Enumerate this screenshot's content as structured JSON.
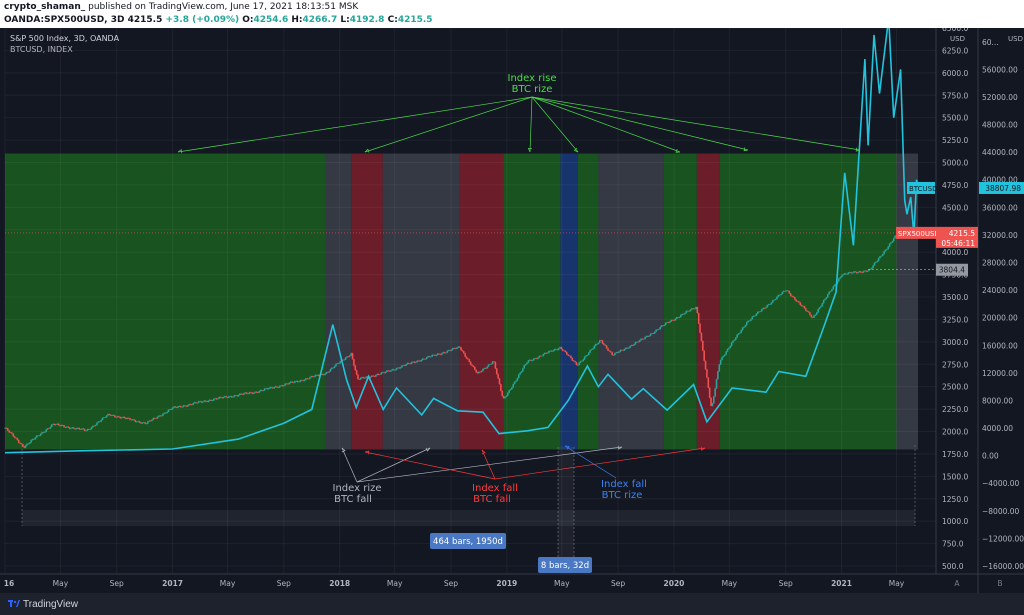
{
  "header": {
    "publisher": "crypto_shaman_",
    "published": " published on TradingView.com, June 17, 2021 18:13:51 MSK",
    "symbol": "OANDA:SPX500USD, 3D",
    "last": "4215.5",
    "change": "+3.8 (+0.09%)",
    "o_label": "O:",
    "o_val": "4254.6",
    "h_label": "H:",
    "h_val": "4266.7",
    "l_label": "L:",
    "l_val": "4192.8",
    "c_label": "C:",
    "c_val": "4215.5"
  },
  "legend": {
    "main": "S&P 500 Index, 3D, OANDA",
    "secondary": "BTCUSD, INDEX"
  },
  "footer": {
    "brand": "TradingView"
  },
  "chart_data": {
    "type": "line",
    "x_range": [
      "2016-01-01",
      "2021-06-17"
    ],
    "spx_ylim": [
      500,
      6500
    ],
    "btc_ylim": [
      -16000,
      62000
    ],
    "spx_ticks": [
      "6500.0",
      "6250.0",
      "6000.0",
      "5750.0",
      "5500.0",
      "5250.0",
      "5000.0",
      "4750.0",
      "4500.0",
      "4250.0",
      "4000.0",
      "3750.0",
      "3500.0",
      "3250.0",
      "3000.0",
      "2750.0",
      "2500.0",
      "2250.0",
      "2000.0",
      "1750.0",
      "1500.0",
      "1250.0",
      "1000.0",
      "750.0",
      "500.0"
    ],
    "spx_tick_values": [
      6500,
      6250,
      6000,
      5750,
      5500,
      5250,
      5000,
      4750,
      4500,
      4250,
      4000,
      3750,
      3500,
      3250,
      3000,
      2750,
      2500,
      2250,
      2000,
      1750,
      1500,
      1250,
      1000,
      750,
      500
    ],
    "btc_ticks": [
      "60...",
      "56000.00",
      "52000.00",
      "48000.00",
      "44000.00",
      "40000.00",
      "36000.00",
      "32000.00",
      "28000.00",
      "24000.00",
      "20000.00",
      "16000.00",
      "12000.00",
      "8000.00",
      "4000.00",
      "0.00",
      "−4000.00",
      "−8000.00",
      "−12000.00",
      "−16000.00"
    ],
    "btc_tick_values": [
      60000,
      56000,
      52000,
      48000,
      44000,
      40000,
      36000,
      32000,
      28000,
      24000,
      20000,
      16000,
      12000,
      8000,
      4000,
      0,
      -4000,
      -8000,
      -12000,
      -16000
    ],
    "usd_label": "USD",
    "x_ticks": [
      {
        "label": "16",
        "date": "2016-01-01"
      },
      {
        "label": "May",
        "date": "2016-05-01"
      },
      {
        "label": "Sep",
        "date": "2016-09-01"
      },
      {
        "label": "2017",
        "date": "2017-01-01"
      },
      {
        "label": "May",
        "date": "2017-05-01"
      },
      {
        "label": "Sep",
        "date": "2017-09-01"
      },
      {
        "label": "2018",
        "date": "2018-01-01"
      },
      {
        "label": "May",
        "date": "2018-05-01"
      },
      {
        "label": "Sep",
        "date": "2018-09-01"
      },
      {
        "label": "2019",
        "date": "2019-01-01"
      },
      {
        "label": "May",
        "date": "2019-05-01"
      },
      {
        "label": "Sep",
        "date": "2019-09-01"
      },
      {
        "label": "2020",
        "date": "2020-01-01"
      },
      {
        "label": "May",
        "date": "2020-05-01"
      },
      {
        "label": "Sep",
        "date": "2020-09-01"
      },
      {
        "label": "2021",
        "date": "2021-01-01"
      },
      {
        "label": "May",
        "date": "2021-05-01"
      }
    ],
    "zones": [
      {
        "from": "2016-01-01",
        "to": "2017-12-01",
        "kind": "green"
      },
      {
        "from": "2017-12-01",
        "to": "2018-01-26",
        "kind": "grey"
      },
      {
        "from": "2018-01-26",
        "to": "2018-04-05",
        "kind": "red"
      },
      {
        "from": "2018-04-05",
        "to": "2018-09-20",
        "kind": "grey"
      },
      {
        "from": "2018-09-20",
        "to": "2018-12-24",
        "kind": "red"
      },
      {
        "from": "2018-12-24",
        "to": "2019-04-28",
        "kind": "green"
      },
      {
        "from": "2019-04-28",
        "to": "2019-06-05",
        "kind": "blue"
      },
      {
        "from": "2019-06-05",
        "to": "2019-07-20",
        "kind": "green"
      },
      {
        "from": "2019-07-20",
        "to": "2019-12-10",
        "kind": "grey"
      },
      {
        "from": "2019-12-10",
        "to": "2020-02-20",
        "kind": "green"
      },
      {
        "from": "2020-02-20",
        "to": "2020-04-10",
        "kind": "red"
      },
      {
        "from": "2020-04-10",
        "to": "2021-05-01",
        "kind": "green"
      },
      {
        "from": "2021-05-01",
        "to": "2021-06-17",
        "kind": "grey"
      }
    ],
    "spx_series": [
      {
        "x": "2016-01-01",
        "y": 2040
      },
      {
        "x": "2016-02-11",
        "y": 1830
      },
      {
        "x": "2016-04-15",
        "y": 2080
      },
      {
        "x": "2016-06-27",
        "y": 2010
      },
      {
        "x": "2016-08-15",
        "y": 2190
      },
      {
        "x": "2016-11-04",
        "y": 2090
      },
      {
        "x": "2017-01-01",
        "y": 2260
      },
      {
        "x": "2017-04-01",
        "y": 2360
      },
      {
        "x": "2017-07-01",
        "y": 2440
      },
      {
        "x": "2017-10-01",
        "y": 2560
      },
      {
        "x": "2017-12-01",
        "y": 2650
      },
      {
        "x": "2018-01-26",
        "y": 2870
      },
      {
        "x": "2018-02-09",
        "y": 2580
      },
      {
        "x": "2018-04-05",
        "y": 2650
      },
      {
        "x": "2018-06-15",
        "y": 2780
      },
      {
        "x": "2018-09-20",
        "y": 2940
      },
      {
        "x": "2018-10-29",
        "y": 2640
      },
      {
        "x": "2018-12-03",
        "y": 2790
      },
      {
        "x": "2018-12-24",
        "y": 2350
      },
      {
        "x": "2019-02-15",
        "y": 2780
      },
      {
        "x": "2019-04-28",
        "y": 2940
      },
      {
        "x": "2019-06-03",
        "y": 2740
      },
      {
        "x": "2019-07-25",
        "y": 3020
      },
      {
        "x": "2019-08-20",
        "y": 2850
      },
      {
        "x": "2019-10-25",
        "y": 3030
      },
      {
        "x": "2019-12-20",
        "y": 3220
      },
      {
        "x": "2020-02-19",
        "y": 3390
      },
      {
        "x": "2020-03-23",
        "y": 2240
      },
      {
        "x": "2020-04-10",
        "y": 2790
      },
      {
        "x": "2020-06-08",
        "y": 3220
      },
      {
        "x": "2020-09-02",
        "y": 3580
      },
      {
        "x": "2020-10-30",
        "y": 3270
      },
      {
        "x": "2021-01-01",
        "y": 3750
      },
      {
        "x": "2021-03-04",
        "y": 3800
      },
      {
        "x": "2021-05-07",
        "y": 4230
      },
      {
        "x": "2021-06-17",
        "y": 4215
      }
    ],
    "btc_series": [
      {
        "x": "2016-01-01",
        "y": 430
      },
      {
        "x": "2016-06-15",
        "y": 700
      },
      {
        "x": "2017-01-01",
        "y": 960
      },
      {
        "x": "2017-05-25",
        "y": 2400
      },
      {
        "x": "2017-09-01",
        "y": 4700
      },
      {
        "x": "2017-11-01",
        "y": 6700
      },
      {
        "x": "2017-12-17",
        "y": 19000
      },
      {
        "x": "2018-01-16",
        "y": 11000
      },
      {
        "x": "2018-02-06",
        "y": 7000
      },
      {
        "x": "2018-03-05",
        "y": 11500
      },
      {
        "x": "2018-04-06",
        "y": 6700
      },
      {
        "x": "2018-05-05",
        "y": 9800
      },
      {
        "x": "2018-06-29",
        "y": 5900
      },
      {
        "x": "2018-07-25",
        "y": 8300
      },
      {
        "x": "2018-09-15",
        "y": 6500
      },
      {
        "x": "2018-11-10",
        "y": 6300
      },
      {
        "x": "2018-12-15",
        "y": 3200
      },
      {
        "x": "2019-02-15",
        "y": 3600
      },
      {
        "x": "2019-04-01",
        "y": 4100
      },
      {
        "x": "2019-05-15",
        "y": 8000
      },
      {
        "x": "2019-06-26",
        "y": 13000
      },
      {
        "x": "2019-07-20",
        "y": 10000
      },
      {
        "x": "2019-08-10",
        "y": 11800
      },
      {
        "x": "2019-09-30",
        "y": 8200
      },
      {
        "x": "2019-10-26",
        "y": 9700
      },
      {
        "x": "2019-12-17",
        "y": 6600
      },
      {
        "x": "2020-02-13",
        "y": 10300
      },
      {
        "x": "2020-03-13",
        "y": 4900
      },
      {
        "x": "2020-05-07",
        "y": 9800
      },
      {
        "x": "2020-07-20",
        "y": 9200
      },
      {
        "x": "2020-08-17",
        "y": 12200
      },
      {
        "x": "2020-10-15",
        "y": 11500
      },
      {
        "x": "2020-11-25",
        "y": 19000
      },
      {
        "x": "2020-12-20",
        "y": 23700
      },
      {
        "x": "2021-01-08",
        "y": 41000
      },
      {
        "x": "2021-01-27",
        "y": 30500
      },
      {
        "x": "2021-02-21",
        "y": 57500
      },
      {
        "x": "2021-02-28",
        "y": 45000
      },
      {
        "x": "2021-03-13",
        "y": 61000
      },
      {
        "x": "2021-03-25",
        "y": 52500
      },
      {
        "x": "2021-04-14",
        "y": 63500
      },
      {
        "x": "2021-04-25",
        "y": 49000
      },
      {
        "x": "2021-05-10",
        "y": 56000
      },
      {
        "x": "2021-05-19",
        "y": 37000
      },
      {
        "x": "2021-05-24",
        "y": 35000
      },
      {
        "x": "2021-06-01",
        "y": 37500
      },
      {
        "x": "2021-06-08",
        "y": 32000
      },
      {
        "x": "2021-06-14",
        "y": 40000
      },
      {
        "x": "2021-06-17",
        "y": 38807
      }
    ],
    "price_tags": {
      "btc_name": "BTCUSD",
      "btc_value": "38807.98",
      "btc_y": 38807,
      "spx_name": "SPX500USD",
      "spx_value": "4215.5",
      "spx_time": "05:46:11",
      "spx_y": 4215,
      "crosshair_value": "3804.4",
      "crosshair_y": 3804
    },
    "annotations": {
      "rise_title": [
        "Index rise",
        "BTC rize"
      ],
      "grey_title": [
        "Index rize",
        "BTC fall"
      ],
      "red_title": [
        "Index fall",
        "BTC fall"
      ],
      "blue_title": [
        "Index fall",
        "BTC rize"
      ],
      "bars_long": "464 bars, 1950d",
      "bars_short": "8 bars, 32d"
    },
    "colors": {
      "green_zone": "#1b5e20",
      "red_zone": "#7b1f2b",
      "blue_zone": "#1a3a7a",
      "grey_zone": "#3b3f4a",
      "btc_line": "#22c3dd",
      "bull": "#26a69a",
      "bear": "#ef5350",
      "ann_green": "#4cdb4c",
      "ann_red": "#ff3b3b",
      "ann_blue": "#3b82f6",
      "ann_grey": "#b2b5be"
    },
    "bottom_axis_labels": [
      "A",
      "B"
    ]
  }
}
